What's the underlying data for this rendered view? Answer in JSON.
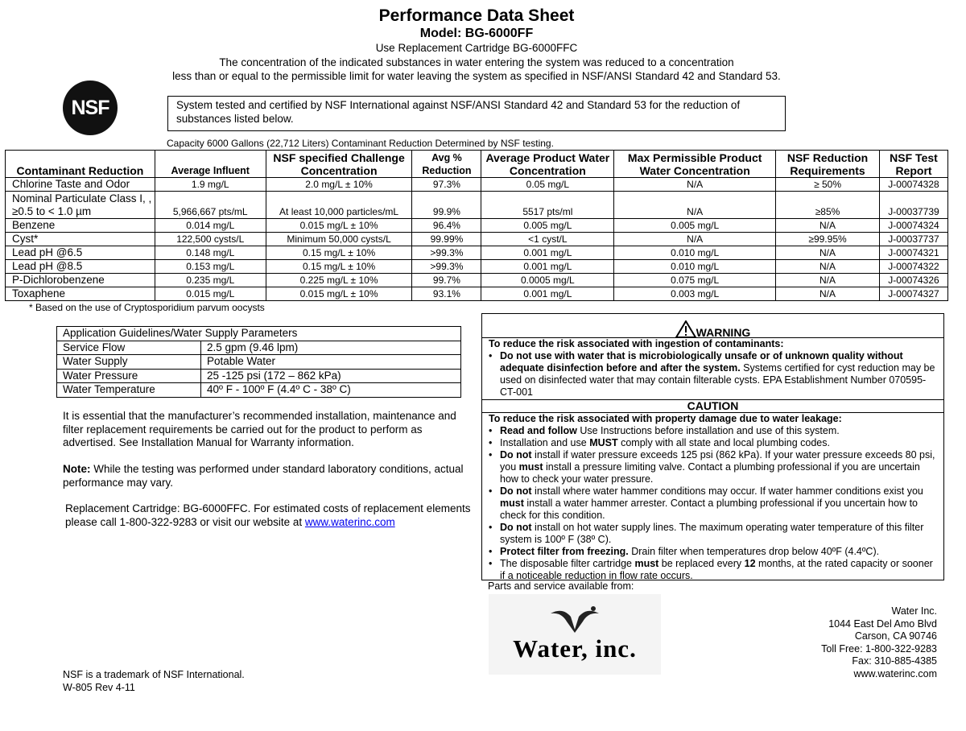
{
  "header": {
    "title": "Performance Data Sheet",
    "model": "Model: BG-6000FF",
    "replacement": "Use Replacement Cartridge BG-6000FFC",
    "intro_line1": "The concentration of the indicated substances in water entering the system was reduced to a concentration",
    "intro_line2": "less than or equal to the permissible limit for water leaving the system as specified in NSF/ANSI Standard 42 and Standard 53."
  },
  "nsf_logo": "NSF",
  "certification": "System tested and certified by NSF International against NSF/ANSI Standard 42 and Standard 53 for the reduction of substances listed below.",
  "capacity": "Capacity 6000 Gallons (22,712 Liters) Contaminant Reduction Determined by NSF testing.",
  "table": {
    "headers": [
      "Contaminant Reduction",
      "Average Influent",
      "NSF specified Challenge Concentration",
      "Avg % Reduction",
      "Average Product Water Concentration",
      "Max Permissible Product Water Concentration",
      "NSF Reduction Requirements",
      "NSF Test Report"
    ],
    "rows": [
      [
        "Chlorine Taste and Odor",
        "1.9 mg/L",
        "2.0 mg/L ± 10%",
        "97.3%",
        "0.05 mg/L",
        "N/A",
        "≥ 50%",
        "J-00074328"
      ],
      [
        "Nominal Particulate Class I, , ≥0.5 to < 1.0 µm",
        "5,966,667 pts/mL",
        "At least 10,000 particles/mL",
        "99.9%",
        "5517 pts/ml",
        "N/A",
        "≥85%",
        "J-00037739"
      ],
      [
        "Benzene",
        "0.014 mg/L",
        "0.015 mg/L ± 10%",
        "96.4%",
        "0.005 mg/L",
        "0.005 mg/L",
        "N/A",
        "J-00074324"
      ],
      [
        "Cyst*",
        "122,500 cysts/L",
        "Minimum 50,000 cysts/L",
        "99.99%",
        "<1 cyst/L",
        "N/A",
        "≥99.95%",
        "J-00037737"
      ],
      [
        "Lead pH @6.5",
        "0.148 mg/L",
        "0.15 mg/L ± 10%",
        ">99.3%",
        "0.001 mg/L",
        "0.010 mg/L",
        "N/A",
        "J-00074321"
      ],
      [
        "Lead pH @8.5",
        "0.153 mg/L",
        "0.15 mg/L ± 10%",
        ">99.3%",
        "0.001 mg/L",
        "0.010 mg/L",
        "N/A",
        "J-00074322"
      ],
      [
        "P-Dichlorobenzene",
        "0.235 mg/L",
        "0.225 mg/L ± 10%",
        "99.7%",
        "0.0005 mg/L",
        "0.075 mg/L",
        "N/A",
        "J-00074326"
      ],
      [
        "Toxaphene",
        "0.015 mg/L",
        "0.015 mg/L ± 10%",
        "93.1%",
        "0.001 mg/L",
        "0.003 mg/L",
        "N/A",
        "J-00074327"
      ]
    ],
    "footnote": "* Based on the use of Cryptosporidium parvum oocysts"
  },
  "params": {
    "title": "Application Guidelines/Water Supply Parameters",
    "rows": [
      [
        "Service Flow",
        "2.5 gpm  (9.46 lpm)"
      ],
      [
        "Water Supply",
        "Potable Water"
      ],
      [
        "Water Pressure",
        "25 -125 psi (172 – 862 kPa)"
      ],
      [
        "Water Temperature",
        "40º F - 100º F (4.4º C - 38º C)"
      ]
    ]
  },
  "paragraphs": {
    "install": "It is essential that the manufacturer’s recommended installation, maintenance and filter replacement requirements be carried out for the product to perform as advertised. See Installation Manual for Warranty information.",
    "note_label": "Note:",
    "note": " While the testing was performed under standard laboratory conditions, actual performance may vary.",
    "replacement": "Replacement Cartridge: BG-6000FFC. For estimated costs of replacement elements please call 1-800-322-9283 or visit our website at ",
    "website_link": "www.waterinc.com"
  },
  "warning": {
    "title": "WARNING",
    "intro": "To reduce the risk associated with ingestion of contaminants:",
    "items": [
      [
        {
          "t": "Do not use with water that is microbiologically unsafe or of unknown quality without adequate disinfection before and after the system.",
          "b": true
        },
        {
          "t": " Systems certified for cyst reduction may be used on disinfected water that may contain filterable cysts. EPA Establishment Number 070595-CT-001",
          "b": false
        }
      ]
    ]
  },
  "caution": {
    "title": "CAUTION",
    "intro": "To reduce the risk associated with property damage due to water leakage:",
    "items": [
      [
        {
          "t": "Read and follow",
          "b": true
        },
        {
          "t": " Use Instructions before installation and use of this system.",
          "b": false
        }
      ],
      [
        {
          "t": "Installation and use ",
          "b": false
        },
        {
          "t": "MUST",
          "b": true
        },
        {
          "t": " comply with all state and local plumbing codes.",
          "b": false
        }
      ],
      [
        {
          "t": "Do not",
          "b": true
        },
        {
          "t": " install if water pressure exceeds 125 psi (862 kPa). If your water pressure exceeds 80 psi, you ",
          "b": false
        },
        {
          "t": "must",
          "b": true
        },
        {
          "t": " install a pressure limiting valve. Contact a plumbing professional if you are uncertain how to check your water pressure.",
          "b": false
        }
      ],
      [
        {
          "t": "Do not",
          "b": true
        },
        {
          "t": " install where water hammer conditions may occur. If water hammer conditions exist you ",
          "b": false
        },
        {
          "t": "must",
          "b": true
        },
        {
          "t": " install a water hammer arrester. Contact a plumbing professional if you uncertain how to check for this condition.",
          "b": false
        }
      ],
      [
        {
          "t": "Do not",
          "b": true
        },
        {
          "t": " install on hot water supply lines. The maximum operating water temperature of this filter system is 100º F (38º C).",
          "b": false
        }
      ],
      [
        {
          "t": "Protect filter from freezing.",
          "b": true
        },
        {
          "t": " Drain filter when temperatures drop below 40ºF (4.4ºC).",
          "b": false
        }
      ],
      [
        {
          "t": "The disposable filter cartridge ",
          "b": false
        },
        {
          "t": "must",
          "b": true
        },
        {
          "t": " be replaced every ",
          "b": false
        },
        {
          "t": "12",
          "b": true
        },
        {
          "t": " months, at the rated capacity or sooner if a noticeable reduction in flow rate occurs.",
          "b": false
        }
      ]
    ]
  },
  "parts": "Parts and service available from:",
  "logo_text": "Water, inc.",
  "address": [
    "Water Inc.",
    "1044 East Del Amo Blvd",
    "Carson, CA 90746",
    "Toll Free: 1-800-322-9283",
    "Fax: 310-885-4385",
    "www.waterinc.com"
  ],
  "footer": {
    "trademark": "NSF is a trademark of NSF International.",
    "revision": "W-805 Rev 4-11"
  }
}
